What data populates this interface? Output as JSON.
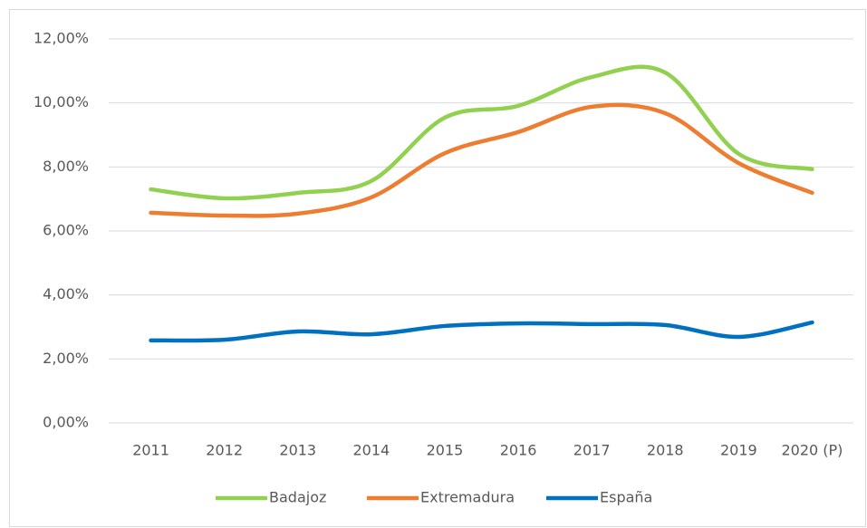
{
  "chart_data": {
    "type": "line",
    "categories": [
      "2011",
      "2012",
      "2013",
      "2014",
      "2015",
      "2016",
      "2017",
      "2018",
      "2019",
      "2020 (P)"
    ],
    "series": [
      {
        "name": "Badajoz",
        "color": "#92d050",
        "values": [
          7.3,
          7.02,
          7.19,
          7.56,
          9.54,
          9.91,
          10.81,
          10.95,
          8.41,
          7.93
        ]
      },
      {
        "name": "Extremadura",
        "color": "#ed7d31",
        "values": [
          6.57,
          6.48,
          6.54,
          7.05,
          8.43,
          9.09,
          9.88,
          9.68,
          8.12,
          7.19
        ]
      },
      {
        "name": "España",
        "color": "#0070c0",
        "values": [
          2.58,
          2.6,
          2.86,
          2.77,
          3.03,
          3.11,
          3.09,
          3.06,
          2.69,
          3.14
        ]
      }
    ],
    "ylim": [
      0,
      12
    ],
    "yticks": [
      {
        "value": 0,
        "label": "0,00%"
      },
      {
        "value": 2,
        "label": "2,00%"
      },
      {
        "value": 4,
        "label": "4,00%"
      },
      {
        "value": 6,
        "label": "6,00%"
      },
      {
        "value": 8,
        "label": "8,00%"
      },
      {
        "value": 10,
        "label": "10,00%"
      },
      {
        "value": 12,
        "label": "12,00%"
      }
    ],
    "grid": true,
    "smooth": true,
    "legend": "bottom"
  }
}
